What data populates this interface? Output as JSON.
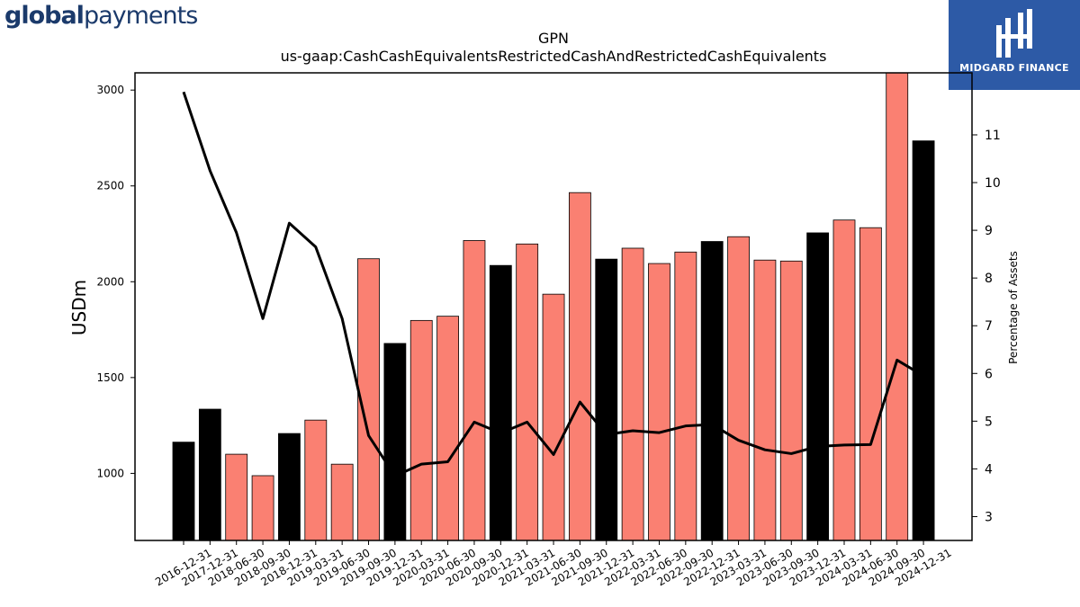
{
  "branding": {
    "left_logo_bold": "global",
    "left_logo_rest": "payments",
    "right_logo_text": "MIDGARD FINANCE"
  },
  "chart_data": {
    "type": "bar",
    "title": "GPN",
    "subtitle": "us-gaap:CashCashEquivalentsRestrictedCashAndRestrictedCashEquivalents",
    "ylabel": "USDm",
    "y2label": "Percentage of Assets",
    "ylim": [
      650,
      3090
    ],
    "y2lim": [
      2.5,
      12.3
    ],
    "yticks": [
      1000,
      1500,
      2000,
      2500,
      3000
    ],
    "y2ticks": [
      3,
      4,
      5,
      6,
      7,
      8,
      9,
      10,
      11
    ],
    "categories": [
      "2016-12-31",
      "2017-12-31",
      "2018-06-30",
      "2018-09-30",
      "2018-12-31",
      "2019-03-31",
      "2019-06-30",
      "2019-09-30",
      "2019-12-31",
      "2020-03-31",
      "2020-06-30",
      "2020-09-30",
      "2020-12-31",
      "2021-03-31",
      "2021-06-30",
      "2021-09-30",
      "2021-12-31",
      "2022-03-31",
      "2022-06-30",
      "2022-09-30",
      "2022-12-31",
      "2023-03-31",
      "2023-06-30",
      "2023-09-30",
      "2023-12-31",
      "2024-03-31",
      "2024-06-30",
      "2024-09-30",
      "2024-12-31"
    ],
    "series": [
      {
        "kind": "bar",
        "values": [
          1163,
          1335,
          1100,
          988,
          1208,
          1278,
          1048,
          2120,
          1678,
          1798,
          1820,
          2215,
          2085,
          2197,
          1935,
          2465,
          2118,
          2175,
          2095,
          2155,
          2210,
          2235,
          2113,
          2108,
          2255,
          2322,
          2282,
          3150,
          2735
        ],
        "colors": [
          "#000000",
          "#000000",
          "#fa8072",
          "#fa8072",
          "#000000",
          "#fa8072",
          "#fa8072",
          "#fa8072",
          "#000000",
          "#fa8072",
          "#fa8072",
          "#fa8072",
          "#000000",
          "#fa8072",
          "#fa8072",
          "#fa8072",
          "#000000",
          "#fa8072",
          "#fa8072",
          "#fa8072",
          "#000000",
          "#fa8072",
          "#fa8072",
          "#fa8072",
          "#000000",
          "#fa8072",
          "#fa8072",
          "#fa8072",
          "#000000"
        ]
      },
      {
        "kind": "line",
        "axis": "right",
        "color": "#000000",
        "values": [
          11.9,
          10.25,
          8.95,
          7.15,
          9.15,
          8.65,
          7.15,
          4.7,
          3.85,
          4.1,
          4.15,
          4.98,
          4.75,
          4.98,
          4.3,
          5.4,
          4.72,
          4.8,
          4.76,
          4.9,
          4.93,
          4.6,
          4.4,
          4.32,
          4.47,
          4.5,
          4.51,
          6.28,
          5.95
        ]
      }
    ]
  }
}
